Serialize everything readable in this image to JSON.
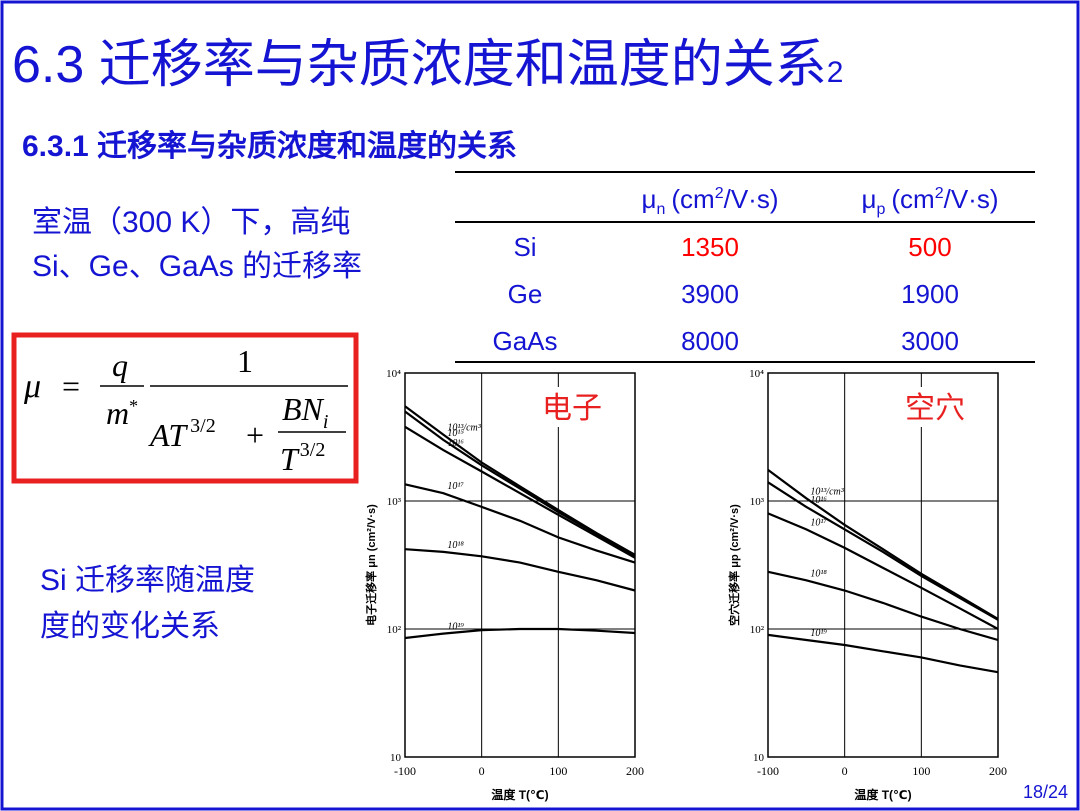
{
  "header": {
    "title": "6.3 迁移率与杂质浓度和温度的关系",
    "title_sub": "2",
    "subtitle": "6.3.1 迁移率与杂质浓度和温度的关系"
  },
  "intro": [
    "室温（300 K）下，高纯",
    "Si、Ge、GaAs 的迁移率"
  ],
  "table": {
    "columns": [
      {
        "symbol": "μ",
        "sub": "n",
        "unit_pre": "(cm",
        "unit_sup": "2",
        "unit_post": "/V·s)"
      },
      {
        "symbol": "μ",
        "sub": "p",
        "unit_pre": "(cm",
        "unit_sup": "2",
        "unit_post": "/V·s)"
      }
    ],
    "rows": [
      [
        "Si",
        1350,
        500
      ],
      [
        "Ge",
        3900,
        1900
      ],
      [
        "GaAs",
        8000,
        3000
      ]
    ],
    "highlight_row": 0,
    "highlight_color": "#ff0000"
  },
  "formula": {
    "lhs": "μ",
    "eq": "=",
    "num1": "q",
    "den1": "m",
    "den1_sup": "*",
    "num2": "1",
    "term1": "AT",
    "term1_sup": "3/2",
    "plus": "+",
    "frac_num": "BN",
    "frac_num_sub": "i",
    "frac_den": "T",
    "frac_den_sup": "3/2"
  },
  "caption": [
    "Si 迁移率随温度",
    "度的变化关系"
  ],
  "chart_data": [
    {
      "type": "line",
      "annotation": "电子",
      "ylabel": "电子迁移率 μn (cm²/V·s)",
      "xlabel": "温度 T(℃)",
      "log_y": true,
      "grid": true,
      "xlim": [
        -100,
        200
      ],
      "ylim": [
        10,
        10000
      ],
      "xticks": [
        -100,
        0,
        100,
        200
      ],
      "yticks": [
        {
          "value": 10,
          "label": "10"
        },
        {
          "value": 100,
          "label": "10²"
        },
        {
          "value": 1000,
          "label": "10³"
        },
        {
          "value": 10000,
          "label": "10⁴"
        }
      ],
      "x": [
        -100,
        -50,
        0,
        50,
        100,
        150,
        200
      ],
      "series": [
        {
          "name": "10¹³/cm³",
          "color": "#000000",
          "values": [
            5500,
            3300,
            2000,
            1300,
            850,
            560,
            380
          ]
        },
        {
          "name": "10¹⁵",
          "color": "#000000",
          "values": [
            5000,
            3000,
            1900,
            1250,
            820,
            550,
            370
          ]
        },
        {
          "name": "10¹⁶",
          "color": "#000000",
          "values": [
            3800,
            2500,
            1700,
            1150,
            780,
            530,
            360
          ]
        },
        {
          "name": "10¹⁷",
          "color": "#000000",
          "values": [
            1350,
            1150,
            900,
            700,
            520,
            410,
            330
          ]
        },
        {
          "name": "10¹⁸",
          "color": "#000000",
          "values": [
            420,
            400,
            370,
            330,
            280,
            240,
            200
          ]
        },
        {
          "name": "10¹⁹",
          "color": "#000000",
          "values": [
            85,
            92,
            98,
            100,
            100,
            97,
            93
          ]
        }
      ]
    },
    {
      "type": "line",
      "annotation": "空穴",
      "ylabel": "空穴迁移率 μp (cm²/V·s)",
      "xlabel": "温度 T(℃)",
      "log_y": true,
      "grid": true,
      "xlim": [
        -100,
        200
      ],
      "ylim": [
        10,
        10000
      ],
      "xticks": [
        -100,
        0,
        100,
        200
      ],
      "yticks": [
        {
          "value": 10,
          "label": "10"
        },
        {
          "value": 100,
          "label": "10²"
        },
        {
          "value": 1000,
          "label": "10³"
        },
        {
          "value": 10000,
          "label": "10⁴"
        }
      ],
      "x": [
        -100,
        -50,
        0,
        50,
        100,
        150,
        200
      ],
      "series": [
        {
          "name": "10¹³/cm³",
          "color": "#000000",
          "values": [
            1750,
            1050,
            650,
            420,
            270,
            180,
            120
          ]
        },
        {
          "name": "10¹⁶",
          "color": "#000000",
          "values": [
            1400,
            900,
            600,
            400,
            260,
            175,
            118
          ]
        },
        {
          "name": "10¹⁷",
          "color": "#000000",
          "values": [
            800,
            600,
            430,
            300,
            210,
            145,
            100
          ]
        },
        {
          "name": "10¹⁸",
          "color": "#000000",
          "values": [
            280,
            240,
            200,
            160,
            125,
            100,
            82
          ]
        },
        {
          "name": "10¹⁹",
          "color": "#000000",
          "values": [
            90,
            82,
            75,
            67,
            60,
            52,
            46
          ]
        }
      ]
    }
  ],
  "page_number": "18/24"
}
